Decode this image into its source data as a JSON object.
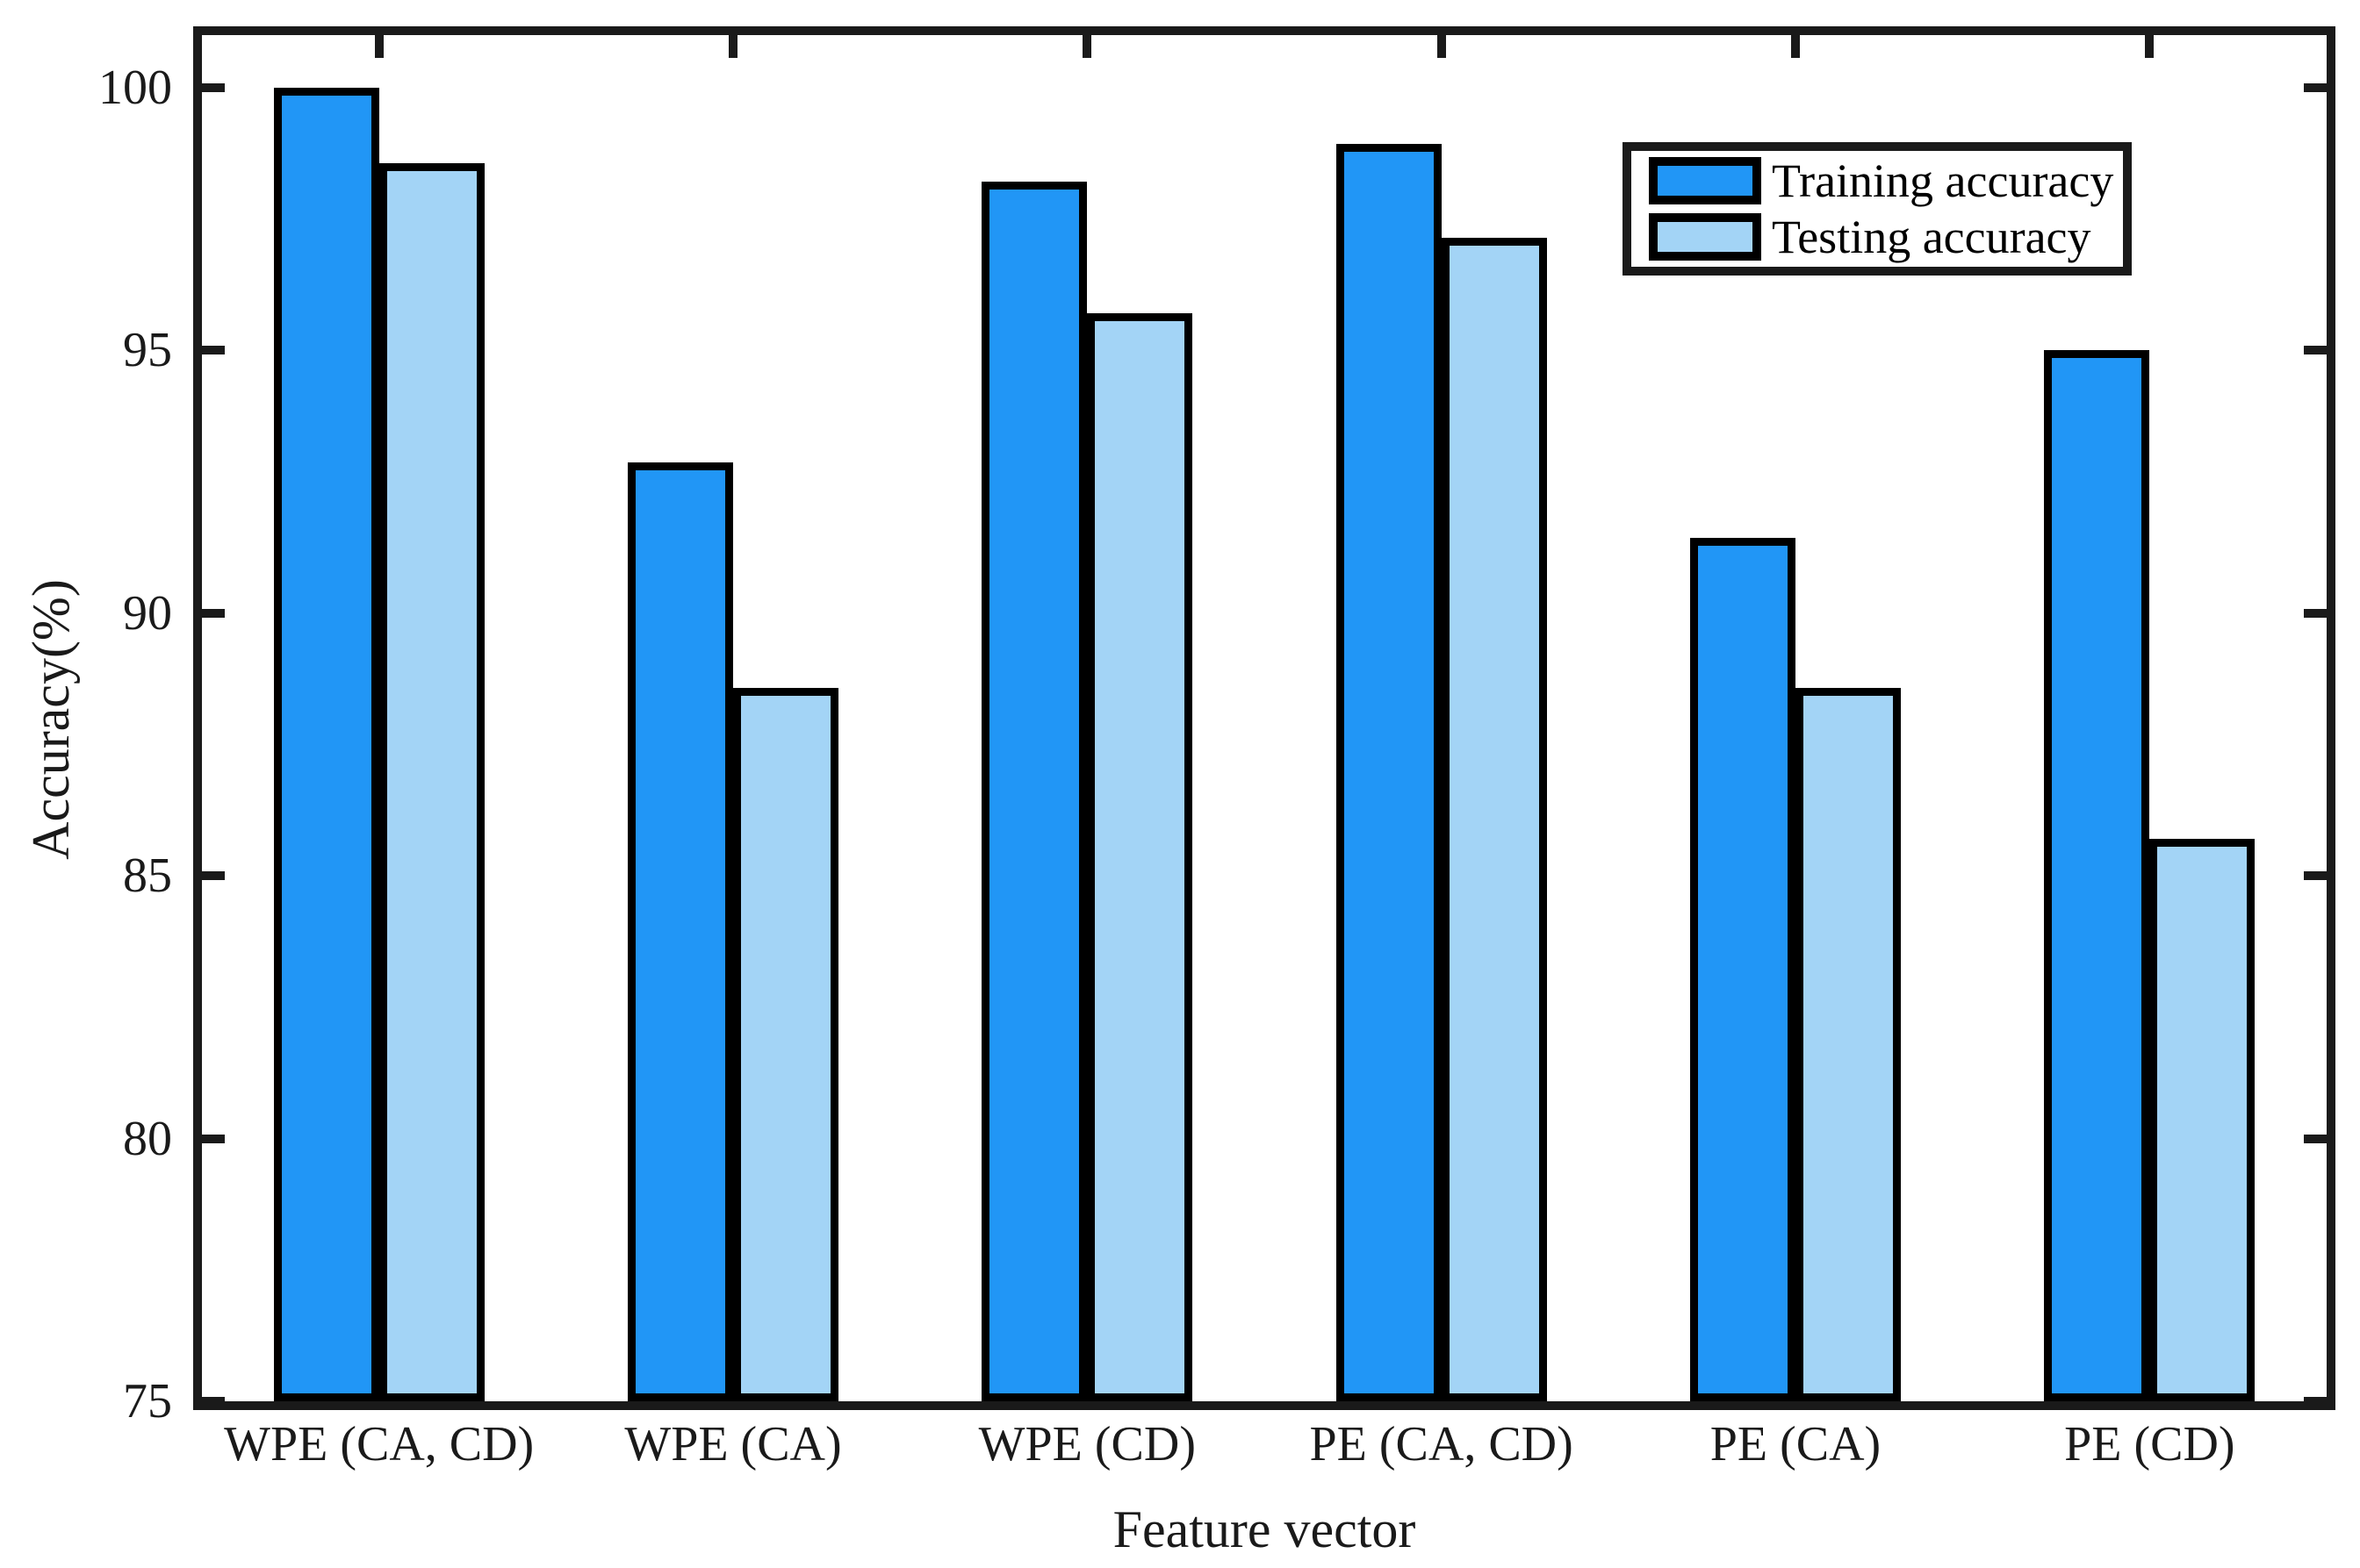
{
  "chart_data": {
    "type": "bar",
    "title": "",
    "xlabel": "Feature vector",
    "ylabel": "Accuracy(%)",
    "categories": [
      "WPE (CA, CD)",
      "WPE (CA)",
      "WPE (CD)",
      "PE (CA, CD)",
      "PE (CA)",
      "PE (CD)"
    ],
    "series": [
      {
        "name": "Training accuracy",
        "color": "#2196F6",
        "values": [
          100.0,
          92.86,
          98.21,
          98.93,
          91.43,
          95.0
        ]
      },
      {
        "name": "Testing accuracy",
        "color": "#A3D4F6",
        "values": [
          98.57,
          88.57,
          95.71,
          97.14,
          88.57,
          85.71
        ]
      }
    ],
    "ylim": [
      75,
      101
    ],
    "yticks": [
      75,
      80,
      85,
      90,
      95,
      100
    ],
    "grid": false,
    "legend_position": "upper-right-inside",
    "bar_edge_color": "#000000",
    "axis_color": "#1a1a1a",
    "background_color": "#ffffff"
  }
}
